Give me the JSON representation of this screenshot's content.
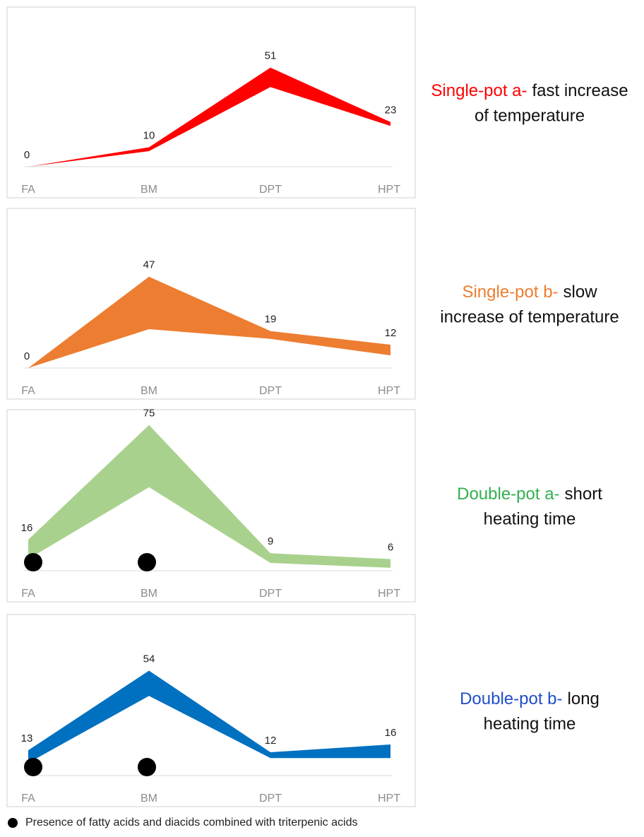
{
  "chart_data": [
    {
      "type": "band",
      "title_lead": "Single-pot a-",
      "title_lines": [
        "fast increase",
        "of temperature"
      ],
      "title_color": "#ff0000",
      "color": "#ff0000",
      "categories": [
        "FA",
        "BM",
        "DPT",
        "HPT"
      ],
      "values": [
        0,
        10,
        51,
        23
      ],
      "lower": [
        0,
        8,
        41,
        21
      ],
      "markers": [
        false,
        false,
        false,
        false
      ],
      "ylim": [
        0,
        80
      ]
    },
    {
      "type": "band",
      "title_lead": "Single-pot b-",
      "title_lines": [
        "slow",
        "increase of temperature"
      ],
      "title_color": "#ed7d31",
      "color": "#ed7d31",
      "categories": [
        "FA",
        "BM",
        "DPT",
        "HPT"
      ],
      "values": [
        0,
        47,
        19,
        12
      ],
      "lower": [
        0,
        20,
        15,
        6.5
      ],
      "markers": [
        false,
        false,
        false,
        false
      ],
      "ylim": [
        0,
        80
      ]
    },
    {
      "type": "band",
      "title_lead": "Double-pot a-",
      "title_lines": [
        "short",
        "heating time"
      ],
      "title_color": "#33b050",
      "color": "#a9d18e",
      "categories": [
        "FA",
        "BM",
        "DPT",
        "HPT"
      ],
      "values": [
        16,
        75,
        9,
        6
      ],
      "lower": [
        6,
        43,
        4,
        1.5
      ],
      "markers": [
        true,
        true,
        false,
        false
      ],
      "ylim": [
        0,
        80
      ]
    },
    {
      "type": "band",
      "title_lead": "Double-pot b-",
      "title_lines": [
        "long",
        "heating time"
      ],
      "title_color": "#1f4fc8",
      "color": "#0070c0",
      "categories": [
        "FA",
        "BM",
        "DPT",
        "HPT"
      ],
      "values": [
        13,
        54,
        12,
        16
      ],
      "lower": [
        6.5,
        41,
        9,
        9
      ],
      "markers": [
        true,
        true,
        false,
        false
      ],
      "ylim": [
        0,
        80
      ]
    }
  ],
  "legend": {
    "text": "Presence of fatty acids and diacids combined with triterpenic acids"
  }
}
